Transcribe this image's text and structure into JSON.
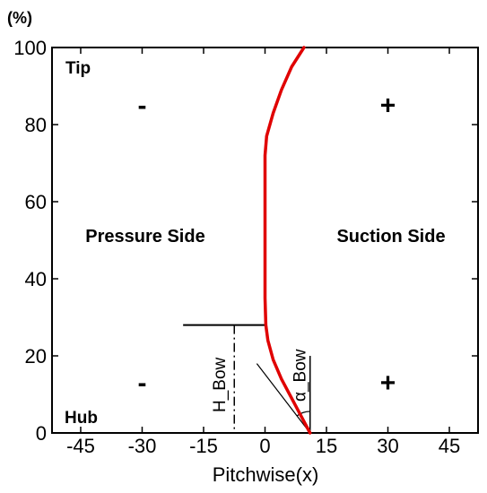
{
  "chart_data": {
    "type": "line",
    "xlabel": "Pitchwise(x)",
    "ylabel": "(%)",
    "xlim": [
      -52,
      52
    ],
    "ylim": [
      0,
      100
    ],
    "x_ticks": [
      -45,
      -30,
      -15,
      0,
      15,
      30,
      45
    ],
    "y_ticks": [
      0,
      20,
      40,
      60,
      80,
      100
    ],
    "grid": false,
    "series": [
      {
        "color": "#e00000",
        "x": [
          11,
          9,
          6.5,
          4,
          2,
          0.7,
          0.2,
          0,
          0,
          0,
          0.4,
          2,
          4,
          6.5,
          9.5
        ],
        "y": [
          0,
          4,
          9,
          14,
          19,
          24,
          28,
          35,
          50,
          72,
          77,
          83,
          89,
          95,
          100
        ]
      }
    ],
    "region_labels": {
      "pressure_side": "Pressure Side",
      "suction_side": "Suction Side",
      "tip": "Tip",
      "hub": "Hub"
    },
    "sign_labels": [
      {
        "text": "-",
        "x": -30,
        "y": 85
      },
      {
        "text": "+",
        "x": 30,
        "y": 85
      },
      {
        "text": "-",
        "x": -30,
        "y": 13
      },
      {
        "text": "+",
        "x": 30,
        "y": 13
      }
    ],
    "annotations": {
      "bow_height_label": "H_Bow",
      "bow_angle_label": "α_Bow",
      "bow_height_level": 28,
      "bow_dashdot_x": -7.5
    }
  }
}
